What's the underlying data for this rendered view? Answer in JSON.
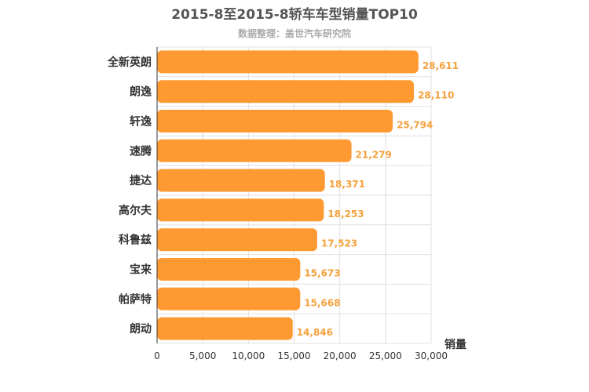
{
  "chart_data": {
    "type": "bar",
    "orientation": "horizontal",
    "title": "2015-8至2015-8轿车车型销量TOP10",
    "subtitle": "数据整理：盖世汽车研究院",
    "xlabel": "销量",
    "ylabel": "",
    "xlim": [
      0,
      30000
    ],
    "x_ticks": [
      "0",
      "5,000",
      "10,000",
      "15,000",
      "20,000",
      "25,000",
      "30,000"
    ],
    "x_tick_values": [
      0,
      5000,
      10000,
      15000,
      20000,
      25000,
      30000
    ],
    "categories": [
      "全新英朗",
      "朗逸",
      "轩逸",
      "速腾",
      "捷达",
      "高尔夫",
      "科鲁兹",
      "宝来",
      "帕萨特",
      "朗动"
    ],
    "values": [
      28611,
      28110,
      25794,
      21279,
      18371,
      18253,
      17523,
      15673,
      15668,
      14846
    ],
    "value_labels": [
      "28,611",
      "28,110",
      "25,794",
      "21,279",
      "18,371",
      "18,253",
      "17,523",
      "15,673",
      "15,668",
      "14,846"
    ],
    "bar_color": "#ff9a33",
    "label_color": "#f5a13c",
    "grid": true,
    "legend": "none"
  }
}
